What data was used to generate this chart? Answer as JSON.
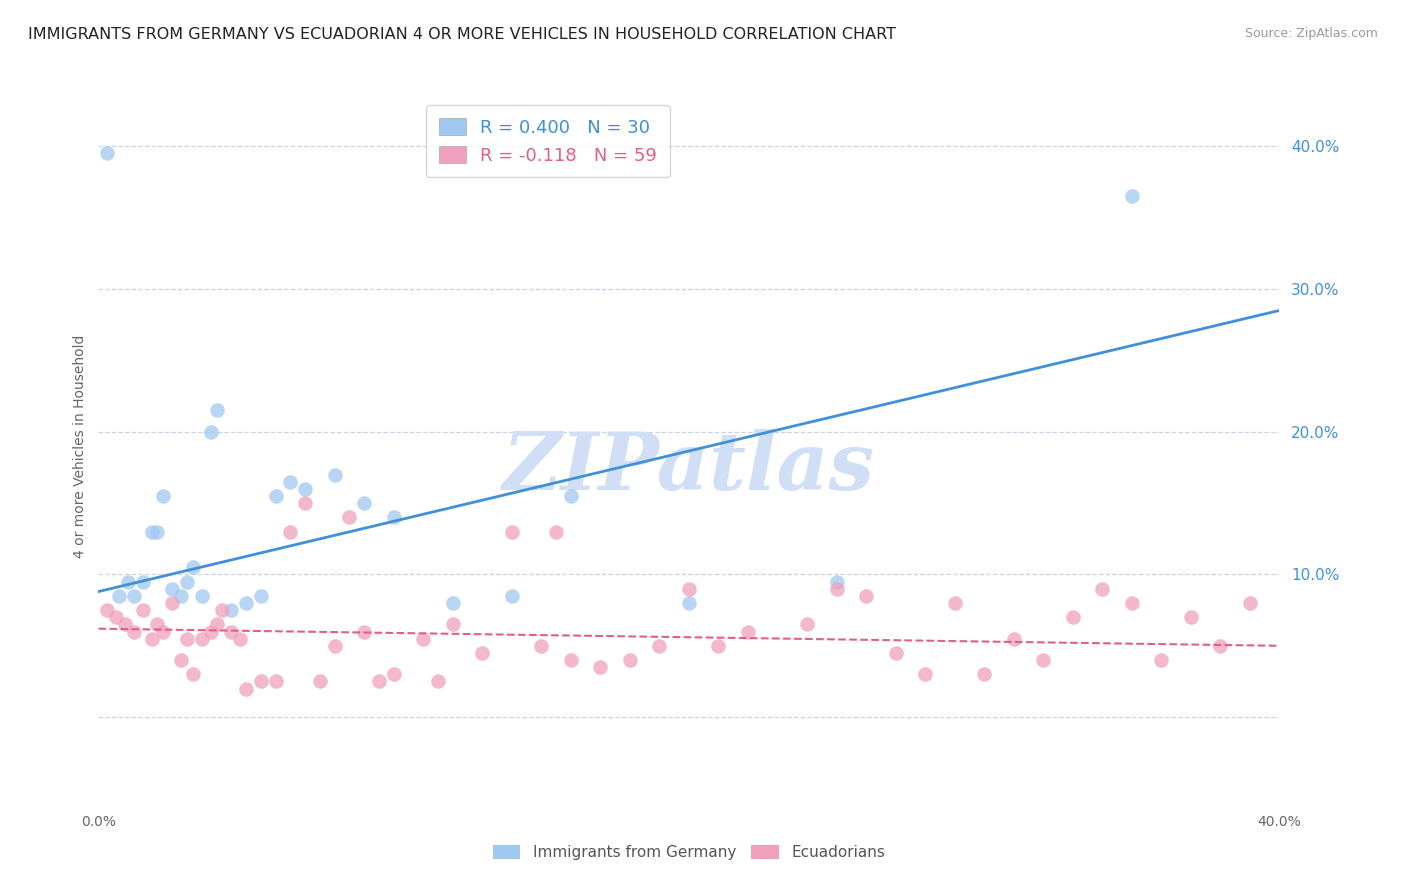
{
  "title": "IMMIGRANTS FROM GERMANY VS ECUADORIAN 4 OR MORE VEHICLES IN HOUSEHOLD CORRELATION CHART",
  "source": "Source: ZipAtlas.com",
  "ylabel": "4 or more Vehicles in Household",
  "right_ytick_labels": [
    "40.0%",
    "30.0%",
    "20.0%",
    "10.0%",
    ""
  ],
  "right_ytick_values": [
    0.4,
    0.3,
    0.2,
    0.1,
    0.0
  ],
  "xmin": 0.0,
  "xmax": 0.4,
  "ymin": -0.06,
  "ymax": 0.44,
  "blue_R": 0.4,
  "blue_N": 30,
  "pink_R": -0.118,
  "pink_N": 59,
  "blue_color": "#a0c8f0",
  "pink_color": "#f0a0bc",
  "blue_line_color": "#4090d8",
  "pink_line_color": "#e06080",
  "watermark": "ZIPatlas",
  "watermark_color": "#d0dff5",
  "title_fontsize": 11.5,
  "blue_scatter_x": [
    0.003,
    0.007,
    0.01,
    0.012,
    0.015,
    0.018,
    0.02,
    0.022,
    0.025,
    0.028,
    0.03,
    0.032,
    0.035,
    0.038,
    0.04,
    0.045,
    0.05,
    0.055,
    0.06,
    0.065,
    0.07,
    0.08,
    0.09,
    0.1,
    0.12,
    0.14,
    0.16,
    0.2,
    0.25,
    0.35
  ],
  "blue_scatter_y": [
    0.395,
    0.085,
    0.095,
    0.085,
    0.095,
    0.13,
    0.13,
    0.155,
    0.09,
    0.085,
    0.095,
    0.105,
    0.085,
    0.2,
    0.215,
    0.075,
    0.08,
    0.085,
    0.155,
    0.165,
    0.16,
    0.17,
    0.15,
    0.14,
    0.08,
    0.085,
    0.155,
    0.08,
    0.095,
    0.365
  ],
  "pink_scatter_x": [
    0.003,
    0.006,
    0.009,
    0.012,
    0.015,
    0.018,
    0.02,
    0.022,
    0.025,
    0.028,
    0.03,
    0.032,
    0.035,
    0.038,
    0.04,
    0.042,
    0.045,
    0.048,
    0.05,
    0.055,
    0.06,
    0.065,
    0.07,
    0.075,
    0.08,
    0.085,
    0.09,
    0.095,
    0.1,
    0.11,
    0.115,
    0.12,
    0.13,
    0.14,
    0.15,
    0.155,
    0.16,
    0.17,
    0.18,
    0.19,
    0.2,
    0.21,
    0.22,
    0.24,
    0.25,
    0.26,
    0.27,
    0.28,
    0.29,
    0.3,
    0.31,
    0.32,
    0.33,
    0.34,
    0.35,
    0.36,
    0.37,
    0.38,
    0.39
  ],
  "pink_scatter_y": [
    0.075,
    0.07,
    0.065,
    0.06,
    0.075,
    0.055,
    0.065,
    0.06,
    0.08,
    0.04,
    0.055,
    0.03,
    0.055,
    0.06,
    0.065,
    0.075,
    0.06,
    0.055,
    0.02,
    0.025,
    0.025,
    0.13,
    0.15,
    0.025,
    0.05,
    0.14,
    0.06,
    0.025,
    0.03,
    0.055,
    0.025,
    0.065,
    0.045,
    0.13,
    0.05,
    0.13,
    0.04,
    0.035,
    0.04,
    0.05,
    0.09,
    0.05,
    0.06,
    0.065,
    0.09,
    0.085,
    0.045,
    0.03,
    0.08,
    0.03,
    0.055,
    0.04,
    0.07,
    0.09,
    0.08,
    0.04,
    0.07,
    0.05,
    0.08
  ],
  "blue_trendline_x": [
    0.0,
    0.4
  ],
  "blue_trendline_y": [
    0.088,
    0.285
  ],
  "pink_trendline_x": [
    0.0,
    0.4
  ],
  "pink_trendline_y": [
    0.062,
    0.05
  ]
}
